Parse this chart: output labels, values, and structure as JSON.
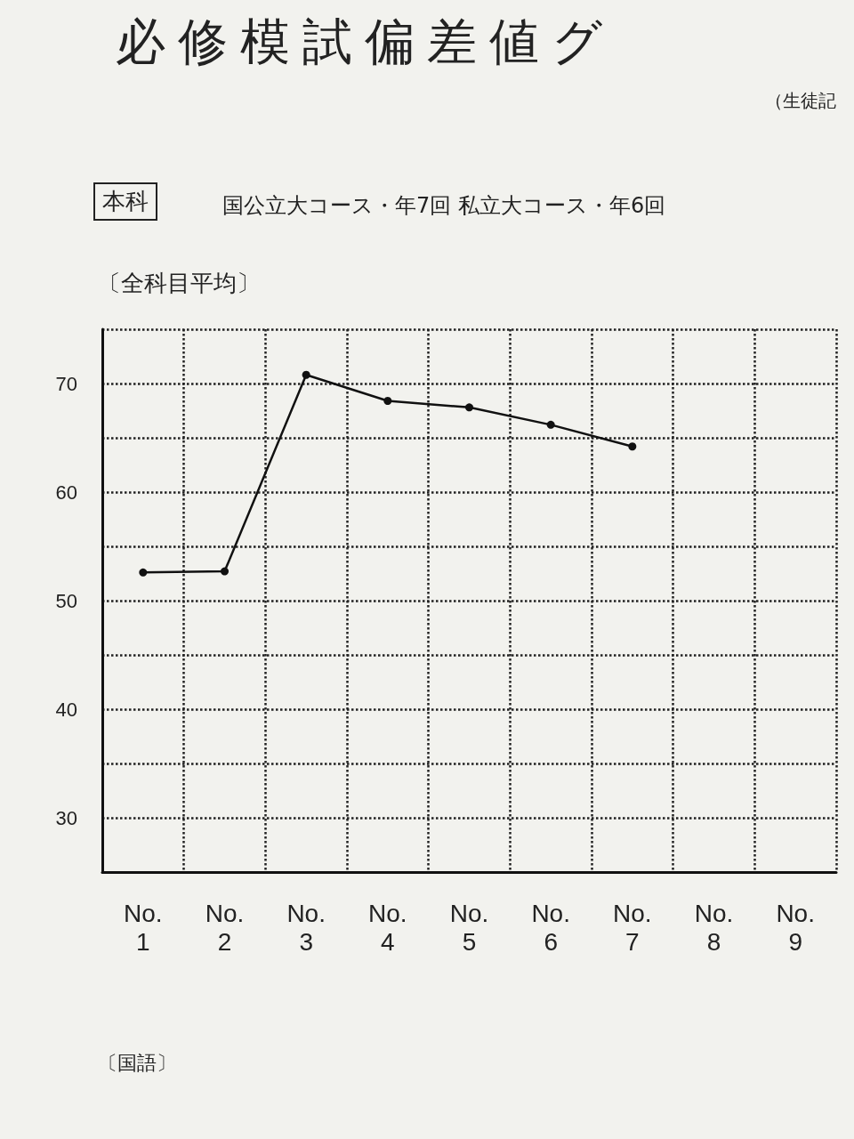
{
  "chart_data": {
    "type": "line",
    "title": "必修模試偏差値グ",
    "subtitle": "（生徒記",
    "annotations": [
      "本科",
      "国公立大コース・年7回 私立大コース・年6回",
      "〔国語〕"
    ],
    "ylabel": "〔全科目平均〕",
    "categories": [
      "No.\n1",
      "No.\n2",
      "No.\n3",
      "No.\n4",
      "No.\n5",
      "No.\n6",
      "No.\n7",
      "No.\n8",
      "No.\n9"
    ],
    "series": [
      {
        "color": "#111111",
        "values": [
          52.6,
          52.7,
          70.8,
          68.4,
          67.8,
          66.2,
          64.2,
          null,
          null
        ]
      }
    ],
    "ylim": [
      25,
      75
    ],
    "yticks": [
      {
        "value": 25,
        "label": null
      },
      30,
      {
        "value": 35,
        "label": null
      },
      40,
      {
        "value": 45,
        "label": null
      },
      50,
      {
        "value": 55,
        "label": null
      },
      60,
      {
        "value": 65,
        "label": null
      },
      70,
      {
        "value": 75,
        "label": null
      }
    ],
    "grid": true,
    "marker": "circle",
    "line_style": "solid"
  }
}
